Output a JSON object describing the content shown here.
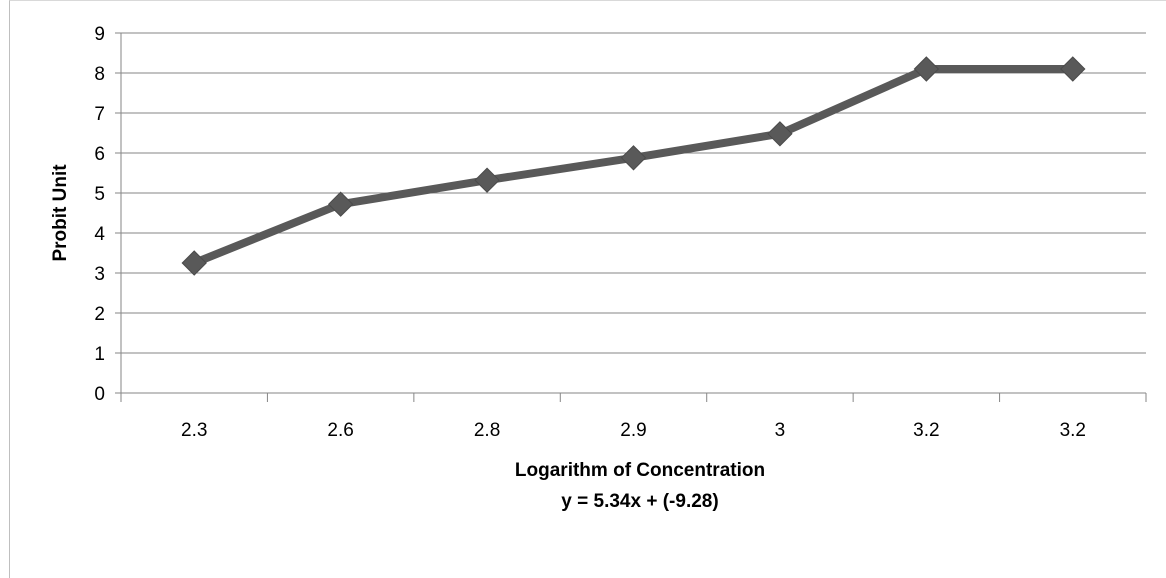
{
  "chart_data": {
    "type": "line",
    "categories": [
      "2.3",
      "2.6",
      "2.8",
      "2.9",
      "3",
      "3.2",
      "3.2"
    ],
    "series": [
      {
        "values": [
          3.25,
          4.72,
          5.32,
          5.88,
          6.48,
          8.1,
          8.1
        ],
        "color": "#595959",
        "marker": "diamond"
      }
    ],
    "xlabel": "Logarithm of Concentration",
    "equation": "y = 5.34x + (-9.28)",
    "ylabel": "Probit Unit",
    "ylim": [
      0,
      9
    ],
    "yticks": [
      "0",
      "1",
      "2",
      "3",
      "4",
      "5",
      "6",
      "7",
      "8",
      "9"
    ],
    "grid": true,
    "legend": "none",
    "colors": {
      "gridline": "#868686",
      "axis": "#868686",
      "line": "#595959"
    }
  }
}
